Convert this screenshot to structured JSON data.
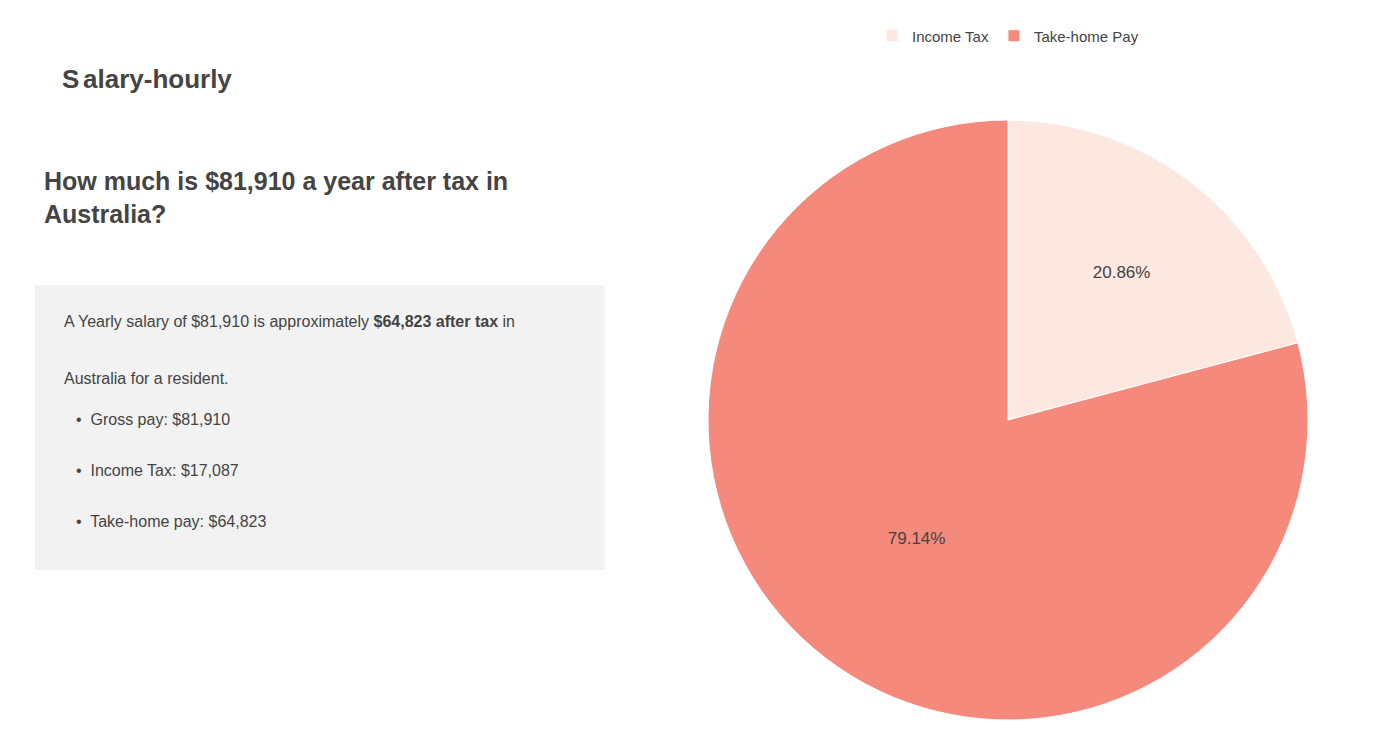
{
  "chart_data": {
    "type": "pie",
    "title": "How much is $81,910 a year after tax in\nAustralia?",
    "annotations": [
      "S",
      "alary-hourly",
      "A Yearly salary of $81,910 is approximately ",
      "$64,823 after tax",
      " in",
      "Australia for a resident.",
      "•  Gross pay: $81,910",
      "•  Income Tax: $17,087",
      "•  Take-home pay: $64,823"
    ],
    "categories": [
      "Income Tax",
      "Take-home Pay"
    ],
    "values": [
      20.86,
      79.14
    ],
    "value_labels": [
      "20.86%",
      "79.14%"
    ],
    "data_labels": true,
    "colors": [
      "#fce8e0",
      "#f4897c"
    ],
    "legend": "top"
  }
}
